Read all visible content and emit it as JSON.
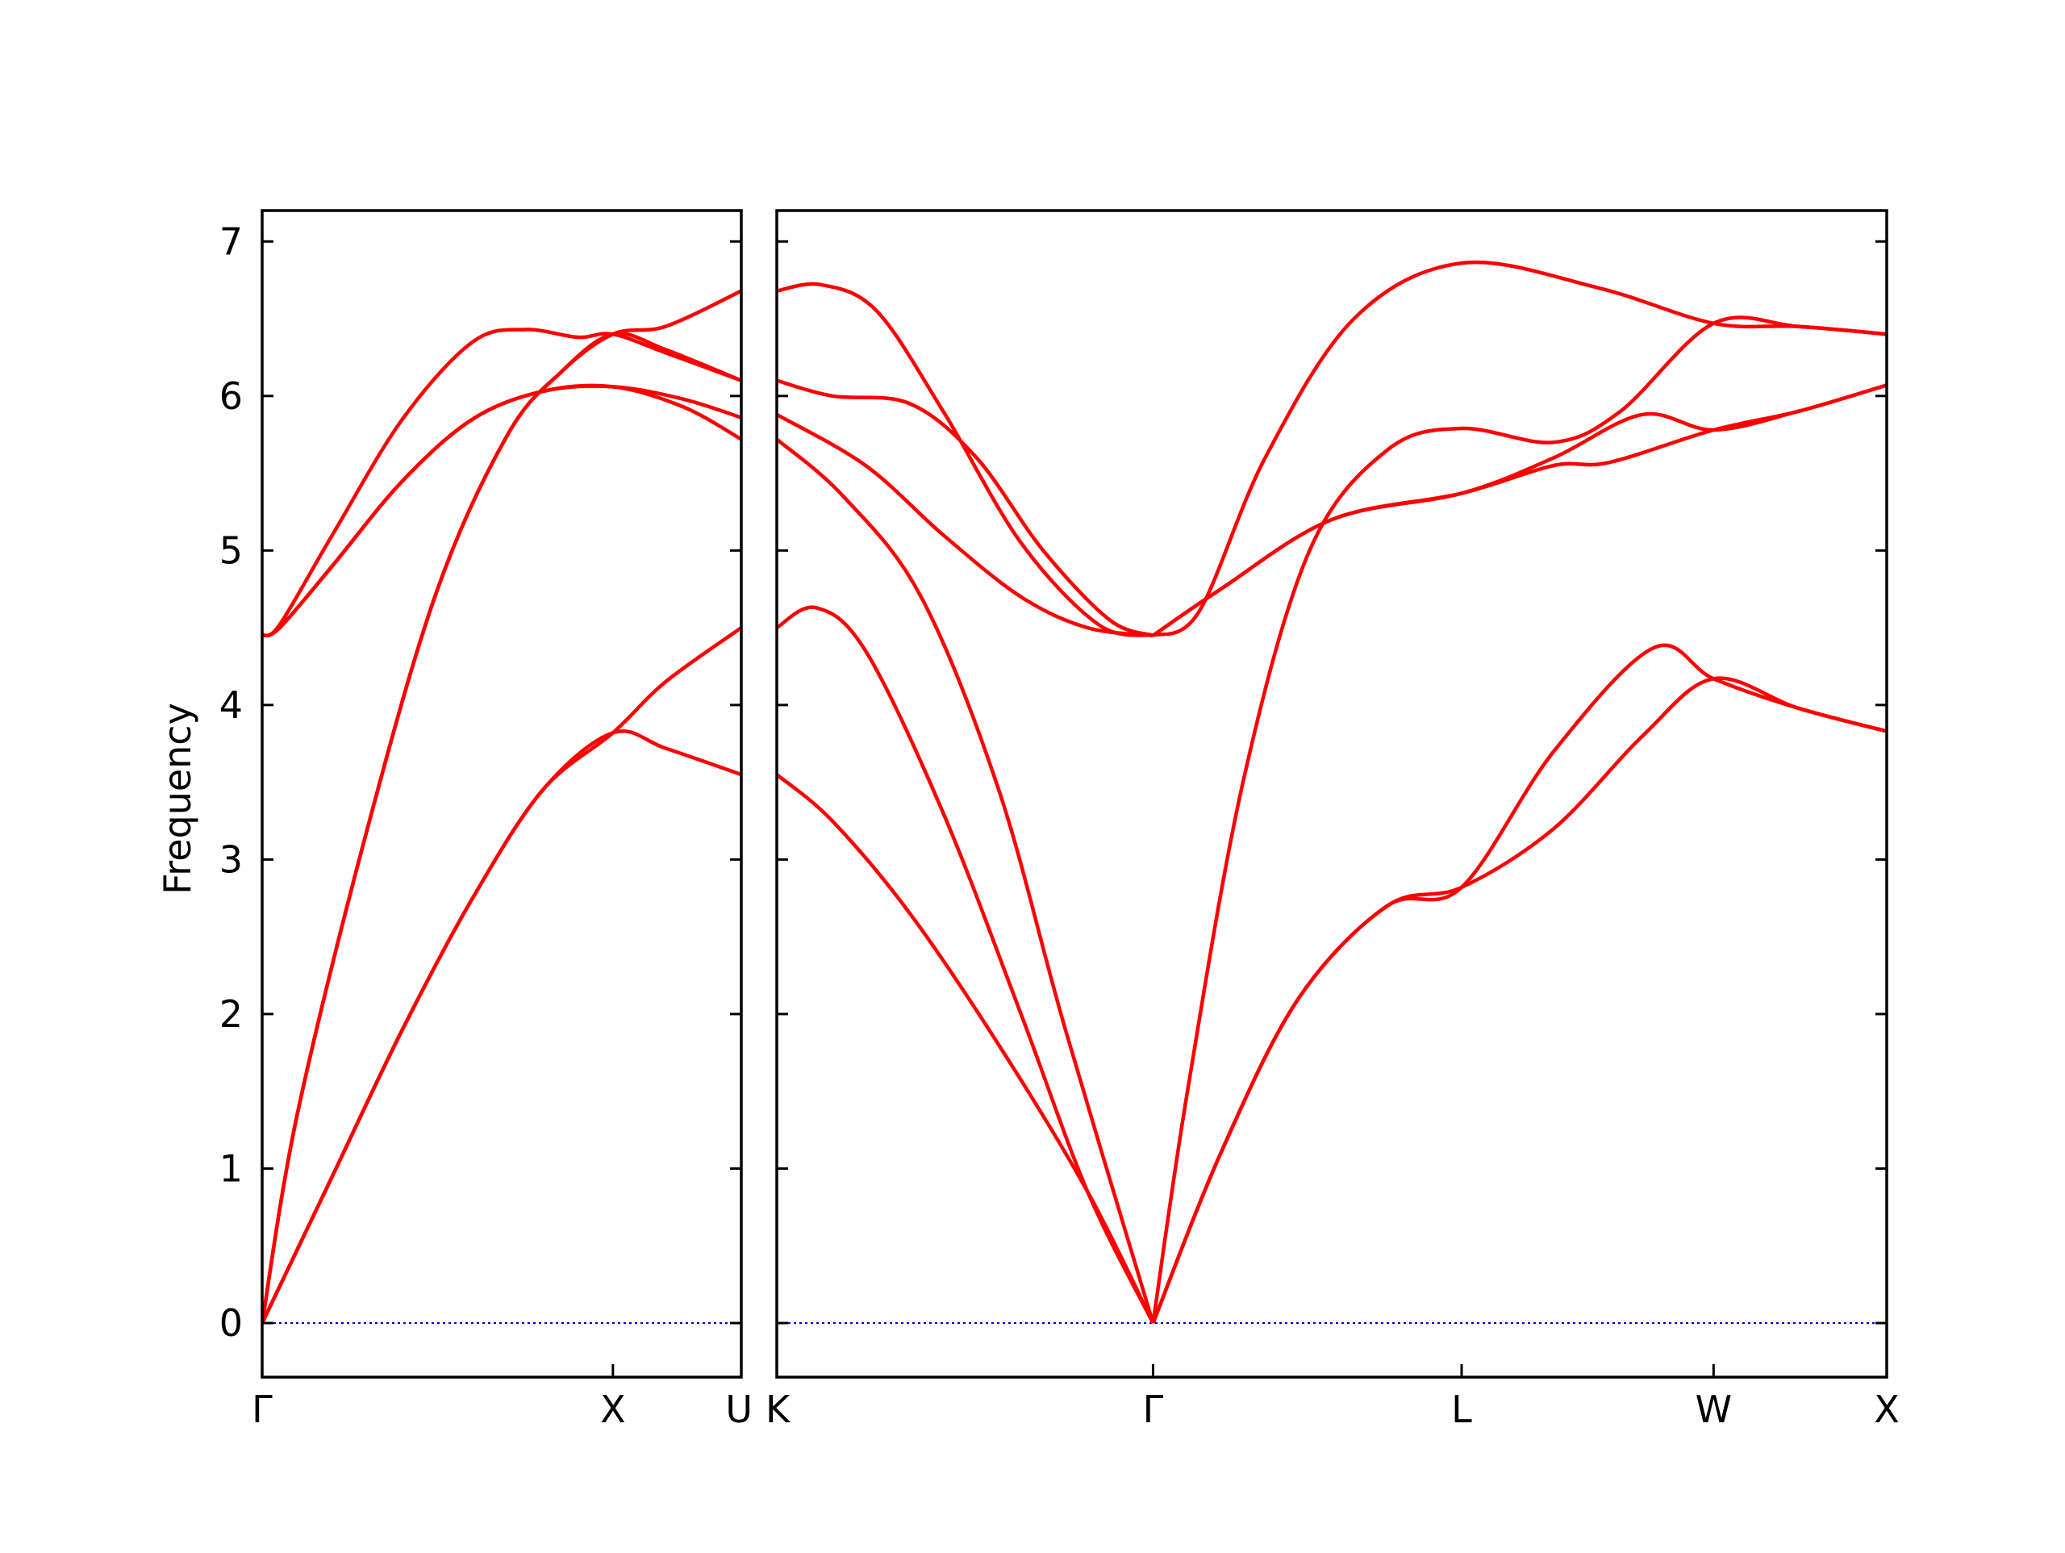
{
  "chart_data": {
    "type": "line",
    "ylabel": "Frequency",
    "xlabel": "",
    "title": "",
    "ylim": [
      -0.35,
      7.2
    ],
    "yticks": [
      0,
      1,
      2,
      3,
      4,
      5,
      6,
      7
    ],
    "grid": false,
    "legend": "none",
    "line_color": "#ff0000",
    "zero_line_color": "#0000cc",
    "panels": [
      {
        "xlim": [
          0,
          1.366
        ],
        "xticks": [
          {
            "x": 0,
            "label": "Γ"
          },
          {
            "x": 1.0,
            "label": "X"
          },
          {
            "x": 1.366,
            "label": "U"
          }
        ],
        "series": [
          {
            "x": [
              0,
              0.2,
              0.4,
              0.6,
              0.8,
              1.0,
              1.15,
              1.366
            ],
            "y": [
              0,
              0.95,
              1.9,
              2.75,
              3.45,
              3.82,
              3.72,
              3.55
            ]
          },
          {
            "x": [
              0,
              0.2,
              0.4,
              0.6,
              0.8,
              1.0,
              1.15,
              1.366
            ],
            "y": [
              0,
              0.95,
              1.9,
              2.75,
              3.45,
              3.82,
              4.15,
              4.5
            ]
          },
          {
            "x": [
              0,
              0.1,
              0.3,
              0.5,
              0.7,
              0.85,
              1.0,
              1.15,
              1.366
            ],
            "y": [
              0,
              1.35,
              3.2,
              4.75,
              5.75,
              6.15,
              6.4,
              6.45,
              6.68
            ]
          },
          {
            "x": [
              0,
              0.1,
              0.3,
              0.5,
              0.7,
              0.85,
              1.0,
              1.15,
              1.366
            ],
            "y": [
              0,
              1.35,
              3.2,
              4.75,
              5.75,
              6.15,
              6.4,
              6.3,
              6.1
            ]
          },
          {
            "x": [
              0,
              0.05,
              0.2,
              0.4,
              0.6,
              0.8,
              1.0,
              1.2,
              1.366
            ],
            "y": [
              4.45,
              4.5,
              4.9,
              5.45,
              5.85,
              6.03,
              6.06,
              5.98,
              5.86
            ]
          },
          {
            "x": [
              0,
              0.05,
              0.2,
              0.4,
              0.6,
              0.8,
              1.0,
              1.2,
              1.366
            ],
            "y": [
              4.45,
              4.5,
              4.9,
              5.45,
              5.85,
              6.03,
              6.06,
              5.93,
              5.72
            ]
          },
          {
            "x": [
              0,
              0.05,
              0.2,
              0.4,
              0.6,
              0.75,
              0.9,
              1.0,
              1.15,
              1.366
            ],
            "y": [
              4.45,
              4.52,
              5.1,
              5.85,
              6.35,
              6.43,
              6.38,
              6.4,
              6.28,
              6.1
            ]
          }
        ]
      },
      {
        "xlim": [
          1.366,
          3.9
        ]
      }
    ]
  }
}
